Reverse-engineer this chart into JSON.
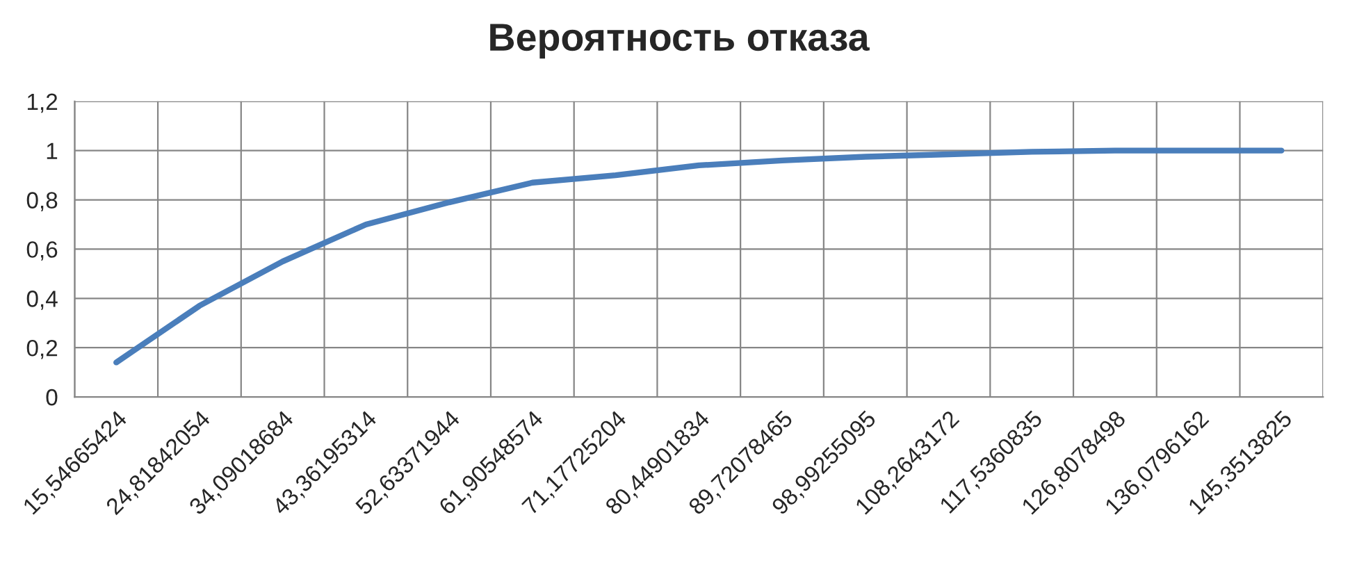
{
  "chart_data": {
    "type": "line",
    "title": "Вероятность отказа",
    "categories": [
      "15,54665424",
      "24,81842054",
      "34,09018684",
      "43,36195314",
      "52,63371944",
      "61,90548574",
      "71,17725204",
      "80,44901834",
      "89,72078465",
      "98,99255095",
      "108,2643172",
      "117,5360835",
      "126,8078498",
      "136,0796162",
      "145,3513825"
    ],
    "series": [
      {
        "color": "#4a7ebb",
        "values": [
          0.14,
          0.37,
          0.55,
          0.7,
          0.79,
          0.87,
          0.9,
          0.94,
          0.96,
          0.975,
          0.985,
          0.995,
          1.0,
          1.0,
          1.0
        ]
      }
    ],
    "ylim": [
      0,
      1.2
    ],
    "yticks": [
      0,
      {
        "value": 0.2,
        "label": "0,2"
      },
      {
        "value": 0.4,
        "label": "0,4"
      },
      {
        "value": 0.6,
        "label": "0,6"
      },
      {
        "value": 0.8,
        "label": "0,8"
      },
      1,
      {
        "value": 1.2,
        "label": "1,2"
      }
    ],
    "grid": true,
    "legend": false,
    "marker": "none",
    "line_style": "solid"
  }
}
